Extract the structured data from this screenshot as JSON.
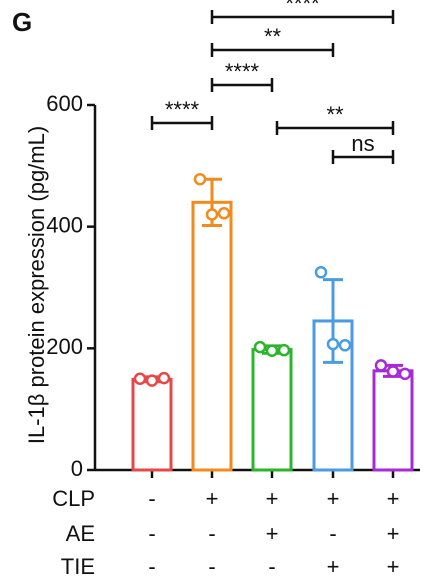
{
  "chart_data": {
    "type": "bar",
    "panel_label": "G",
    "y_label": "IL-1β protein expression (pg/mL)",
    "categories": [
      null,
      null,
      null,
      null,
      null
    ],
    "values": [
      149,
      440,
      198,
      245,
      163
    ],
    "errors": [
      4,
      38,
      6,
      68,
      9
    ],
    "points": [
      [
        150,
        147,
        151
      ],
      [
        478,
        420,
        422
      ],
      [
        202,
        196,
        197
      ],
      [
        325,
        207,
        205
      ],
      [
        172,
        162,
        158
      ]
    ],
    "colors": [
      "#e8474a",
      "#f28a1e",
      "#2bb52b",
      "#4a9be0",
      "#a829d6"
    ],
    "ylim": [
      0,
      600
    ],
    "yticks": [
      0,
      200,
      400,
      600
    ],
    "conditions": [
      {
        "name": "CLP",
        "values": [
          "-",
          "+",
          "+",
          "+",
          "+"
        ]
      },
      {
        "name": "AE",
        "values": [
          "-",
          "-",
          "+",
          "-",
          "+"
        ]
      },
      {
        "name": "TIE",
        "values": [
          "-",
          "-",
          "-",
          "+",
          "+"
        ]
      }
    ],
    "comparisons": [
      {
        "label": "****"
      },
      {
        "label": "****"
      },
      {
        "label": "**"
      },
      {
        "label": "****"
      },
      {
        "label": "**"
      },
      {
        "label": "ns"
      }
    ]
  }
}
